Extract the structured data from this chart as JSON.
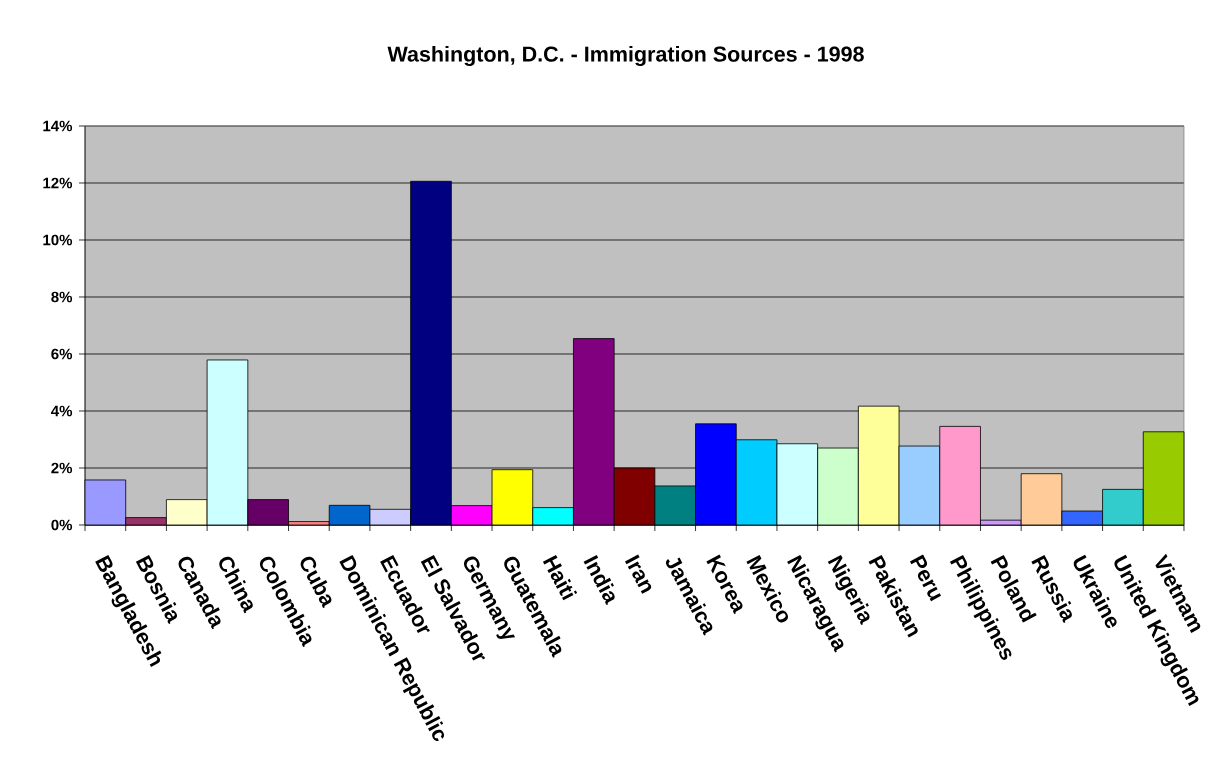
{
  "chart_data": {
    "type": "bar",
    "title": "Washington, D.C. - Immigration Sources - 1998",
    "categories": [
      "Bangladesh",
      "Bosnia",
      "Canada",
      "China",
      "Colombia",
      "Cuba",
      "Dominican Republic",
      "Ecuador",
      "El Salvador",
      "Germany",
      "Guatemala",
      "Haiti",
      "India",
      "Iran",
      "Jamaica",
      "Korea",
      "Mexico",
      "Nicaragua",
      "Nigeria",
      "Pakistan",
      "Peru",
      "Philippines",
      "Poland",
      "Russia",
      "Ukraine",
      "United Kingdom",
      "Vietnam"
    ],
    "values": [
      1.58,
      0.26,
      0.89,
      5.79,
      0.89,
      0.12,
      0.69,
      0.55,
      12.06,
      0.68,
      1.94,
      0.61,
      6.54,
      2.0,
      1.37,
      3.55,
      2.99,
      2.85,
      2.7,
      4.17,
      2.77,
      3.46,
      0.17,
      1.8,
      0.49,
      1.25,
      3.27
    ],
    "colors": [
      "#9999ff",
      "#993366",
      "#ffffcc",
      "#ccffff",
      "#660066",
      "#ff8080",
      "#0066cc",
      "#ccccff",
      "#000080",
      "#ff00ff",
      "#ffff00",
      "#00ffff",
      "#800080",
      "#800000",
      "#008080",
      "#0000ff",
      "#00ccff",
      "#ccffff",
      "#ccffcc",
      "#ffff99",
      "#99ccff",
      "#ff99cc",
      "#cc99ff",
      "#ffcc99",
      "#3366ff",
      "#33cccc",
      "#99cc00"
    ],
    "ylim": [
      0,
      14
    ],
    "yticks": [
      {
        "value": 0,
        "label": "0%"
      },
      {
        "value": 2,
        "label": "2%"
      },
      {
        "value": 4,
        "label": "4%"
      },
      {
        "value": 6,
        "label": "6%"
      },
      {
        "value": 8,
        "label": "8%"
      },
      {
        "value": 10,
        "label": "10%"
      },
      {
        "value": 12,
        "label": "12%"
      },
      {
        "value": 14,
        "label": "14%"
      }
    ],
    "grid": "y"
  }
}
